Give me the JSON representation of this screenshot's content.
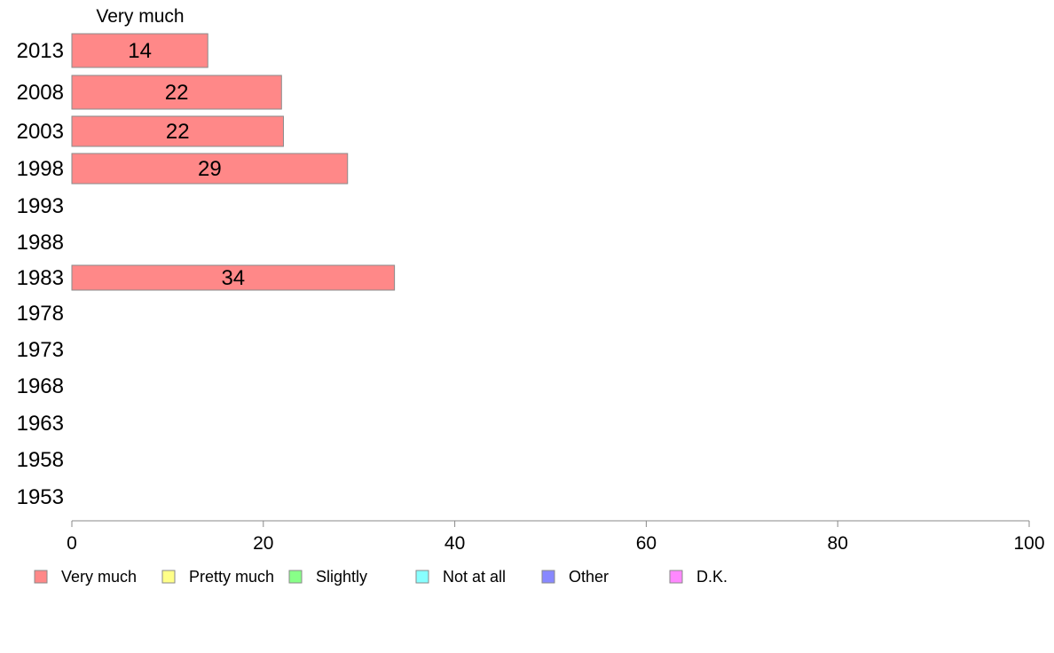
{
  "chart_data": {
    "type": "bar",
    "orientation": "horizontal",
    "series_header": "Very much",
    "categories": [
      "2013",
      "2008",
      "2003",
      "1998",
      "1993",
      "1988",
      "1983",
      "1978",
      "1973",
      "1968",
      "1963",
      "1958",
      "1953"
    ],
    "series": [
      {
        "name": "Very much",
        "color": "#ff8888",
        "values": [
          14.2,
          21.9,
          22.1,
          28.8,
          null,
          null,
          33.7,
          null,
          null,
          null,
          null,
          null,
          null
        ],
        "labels": [
          "14",
          "22",
          "22",
          "29",
          "",
          "",
          "34",
          "",
          "",
          "",
          "",
          "",
          ""
        ]
      }
    ],
    "xlim": [
      0,
      100
    ],
    "xticks": [
      0,
      20,
      40,
      60,
      80,
      100
    ],
    "grid": false,
    "legend_position": "bottom",
    "legend": [
      {
        "label": "Very much",
        "color": "#ff8888"
      },
      {
        "label": "Pretty much",
        "color": "#ffff88"
      },
      {
        "label": "Slightly",
        "color": "#88ff88"
      },
      {
        "label": "Not at all",
        "color": "#88ffff"
      },
      {
        "label": "Other",
        "color": "#8888ff"
      },
      {
        "label": "D.K.",
        "color": "#ff88ff"
      }
    ]
  }
}
